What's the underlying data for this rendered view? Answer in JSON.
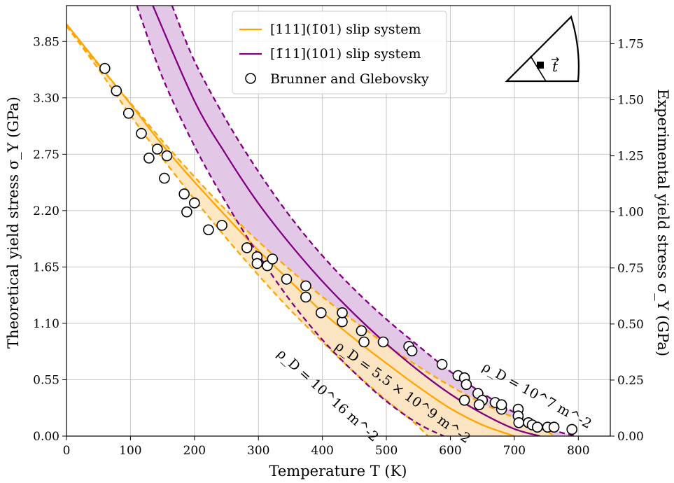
{
  "chart_data": {
    "type": "line",
    "xlabel": "Temperature T (K)",
    "ylabel_left": "Theoretical yield stress σ_Y (GPa)",
    "ylabel_right": "Experimental yield stress σ_Y (GPa)",
    "xlim": [
      0,
      850
    ],
    "ylim_left": [
      0,
      4.2
    ],
    "ylim_right": [
      0,
      1.92
    ],
    "x_ticks": [
      "0",
      "100",
      "200",
      "300",
      "400",
      "500",
      "600",
      "700",
      "800"
    ],
    "y_ticks_left": [
      "0.00",
      "0.55",
      "1.10",
      "1.65",
      "2.20",
      "2.75",
      "3.30",
      "3.85"
    ],
    "y_ticks_right": [
      "0.00",
      "0.25",
      "0.50",
      "0.75",
      "1.00",
      "1.25",
      "1.50",
      "1.75"
    ],
    "grid": true,
    "legend_position": "top-center",
    "colors": {
      "orange": "#ffa500",
      "purple": "#800080",
      "orange_fill": "#fde6be",
      "purple_fill": "#e2c8e6"
    },
    "legend": [
      {
        "label": "[111](1̄01) slip system",
        "kind": "line",
        "color": "#ffa500"
      },
      {
        "label": "[1̄11](101) slip system",
        "kind": "line",
        "color": "#800080"
      },
      {
        "label": "Brunner and Glebovsky",
        "kind": "marker"
      }
    ],
    "annotations": [
      "ρ_D = 10^7 m^-2",
      "ρ_D = 5.5 × 10^9 m^-2",
      "ρ_D = 10^16 m^-2"
    ],
    "series": [
      {
        "name": "[111](1̄01) slip system",
        "role": "solid",
        "color": "#ffa500",
        "x": [
          0,
          50,
          100,
          150,
          200,
          250,
          300,
          350,
          400,
          450,
          500,
          550,
          600,
          650,
          700
        ],
        "y": [
          4.02,
          3.63,
          3.24,
          2.84,
          2.48,
          2.14,
          1.81,
          1.51,
          1.21,
          0.95,
          0.71,
          0.48,
          0.27,
          0.11,
          0.0
        ]
      },
      {
        "role": "upper",
        "color": "#ffa500",
        "x": [
          0,
          50,
          100,
          150,
          200,
          250,
          300,
          350,
          400,
          450,
          500,
          550,
          600,
          650,
          700,
          750,
          760
        ],
        "y": [
          4.0,
          3.62,
          3.25,
          2.88,
          2.53,
          2.2,
          1.9,
          1.62,
          1.36,
          1.12,
          0.89,
          0.68,
          0.49,
          0.32,
          0.18,
          0.05,
          0.0
        ]
      },
      {
        "role": "lower",
        "color": "#ffa500",
        "x": [
          0,
          50,
          100,
          150,
          200,
          250,
          300,
          350,
          400,
          450,
          500,
          540,
          565
        ],
        "y": [
          4.0,
          3.58,
          3.13,
          2.71,
          2.31,
          1.93,
          1.57,
          1.23,
          0.92,
          0.62,
          0.35,
          0.15,
          0.0
        ]
      },
      {
        "name": "[1̄11](101) slip system",
        "role": "solid",
        "color": "#800080",
        "x": [
          135,
          200,
          250,
          300,
          350,
          400,
          450,
          500,
          550,
          600,
          650,
          700,
          740
        ],
        "y": [
          4.2,
          3.27,
          2.74,
          2.27,
          1.87,
          1.51,
          1.19,
          0.9,
          0.64,
          0.41,
          0.22,
          0.07,
          0.0
        ]
      },
      {
        "role": "upper",
        "color": "#800080",
        "x": [
          165,
          200,
          250,
          300,
          350,
          400,
          450,
          500,
          550,
          600,
          650,
          700,
          750,
          795
        ],
        "y": [
          4.2,
          3.66,
          3.08,
          2.58,
          2.14,
          1.76,
          1.43,
          1.14,
          0.88,
          0.63,
          0.42,
          0.23,
          0.08,
          0.0
        ]
      },
      {
        "role": "lower",
        "color": "#800080",
        "x": [
          110,
          150,
          200,
          250,
          300,
          350,
          400,
          450,
          500,
          550,
          590
        ],
        "y": [
          4.2,
          3.5,
          2.83,
          2.27,
          1.77,
          1.32,
          0.94,
          0.62,
          0.34,
          0.12,
          0.0
        ]
      }
    ],
    "points": {
      "name": "Brunner and Glebovsky",
      "axis": "right",
      "x": [
        60,
        78,
        97,
        117,
        142,
        157,
        129,
        153,
        184,
        200,
        188,
        222,
        243,
        282,
        298,
        298,
        314,
        322,
        344,
        374,
        374,
        398,
        431,
        431,
        461,
        465,
        495,
        535,
        540,
        587,
        612,
        622,
        625,
        622,
        643,
        650,
        645,
        670,
        680,
        680,
        706,
        706,
        707,
        722,
        728,
        736,
        752,
        762,
        790
      ],
      "y": [
        1.64,
        1.54,
        1.44,
        1.35,
        1.28,
        1.25,
        1.24,
        1.15,
        1.08,
        1.04,
        1.0,
        0.92,
        0.94,
        0.84,
        0.8,
        0.77,
        0.76,
        0.79,
        0.7,
        0.67,
        0.62,
        0.55,
        0.51,
        0.55,
        0.47,
        0.42,
        0.42,
        0.4,
        0.38,
        0.32,
        0.27,
        0.26,
        0.23,
        0.16,
        0.19,
        0.16,
        0.14,
        0.15,
        0.12,
        0.14,
        0.12,
        0.09,
        0.06,
        0.06,
        0.05,
        0.04,
        0.04,
        0.04,
        0.03
      ]
    }
  }
}
